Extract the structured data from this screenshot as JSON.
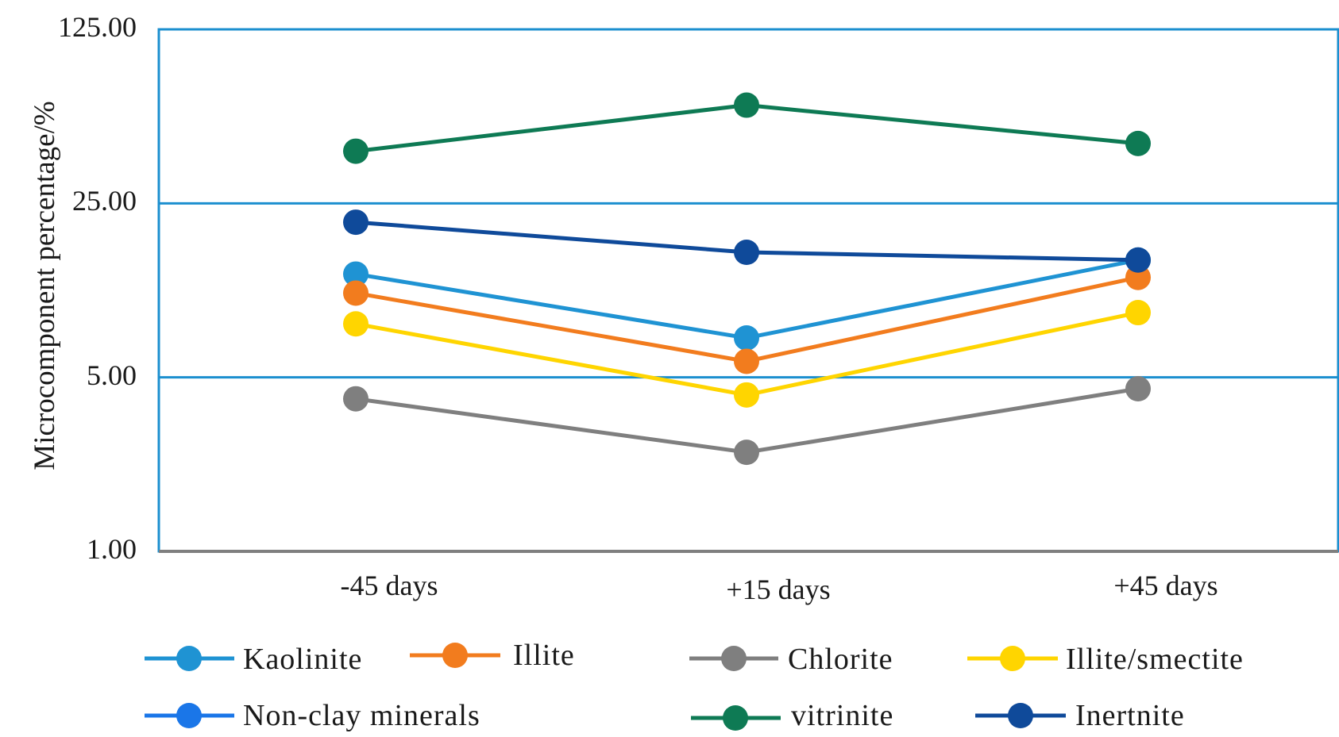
{
  "chart_data": {
    "type": "line",
    "title": "",
    "xlabel": "",
    "ylabel": "Microcomponent percentage/%",
    "yscale": "log",
    "ylim": [
      1.0,
      125.0
    ],
    "yticks": [
      1.0,
      5.0,
      25.0,
      125.0
    ],
    "ytick_labels": [
      "1.00",
      "5.00",
      "25.00",
      "125.00"
    ],
    "categories": [
      "-45 days",
      "+15 days",
      "+45 days"
    ],
    "grid": true,
    "legend_position": "bottom",
    "series": [
      {
        "name": "Kaolinite",
        "color": "#1f93d3",
        "values": [
          13.0,
          7.2,
          14.8
        ]
      },
      {
        "name": "Illite",
        "color": "#f27c1e",
        "values": [
          10.9,
          5.8,
          12.6
        ]
      },
      {
        "name": "Chlorite",
        "color": "#7f7f7f",
        "values": [
          4.1,
          2.5,
          4.5
        ]
      },
      {
        "name": "Illite/smectite",
        "color": "#ffd500",
        "values": [
          8.2,
          4.25,
          9.1
        ]
      },
      {
        "name": "Non-clay minerals",
        "color": "#1a76e8",
        "values": [
          null,
          null,
          null
        ]
      },
      {
        "name": "vitrinite",
        "color": "#0e7a54",
        "values": [
          40.5,
          62.0,
          43.5
        ]
      },
      {
        "name": "Inertnite",
        "color": "#0f4a9a",
        "values": [
          21.0,
          15.9,
          14.8
        ]
      }
    ]
  },
  "legend_colors": {
    "frame": "#1b8fcf",
    "baseline": "#7f7f7f"
  }
}
